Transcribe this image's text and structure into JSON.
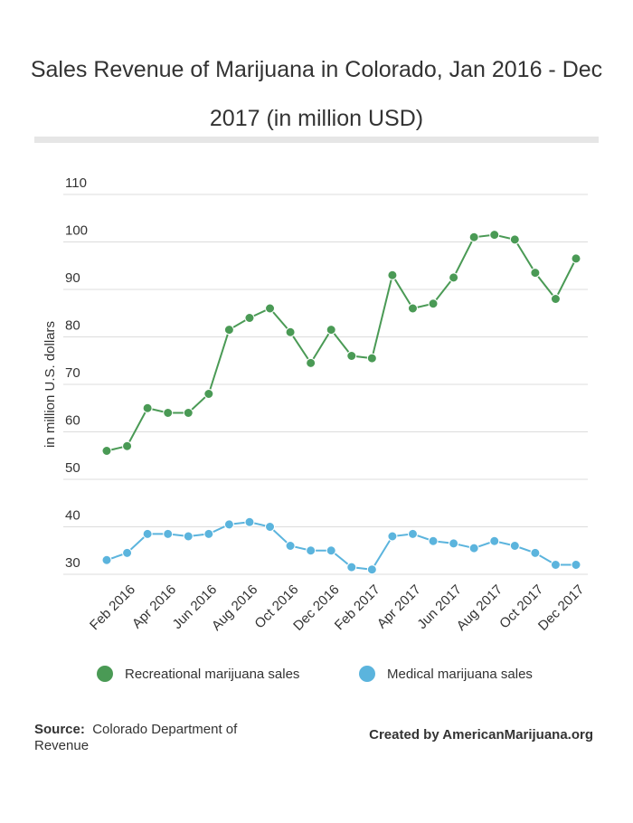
{
  "chart_data": {
    "type": "line",
    "title": "Sales Revenue of Marijuana in Colorado, Jan 2016 - Dec 2017 (in million USD)",
    "y_label": "in million U.S. dollars",
    "categories": [
      null,
      "Feb 2016",
      null,
      "Apr 2016",
      null,
      "Jun 2016",
      null,
      "Aug 2016",
      null,
      "Oct 2016",
      null,
      "Dec 2016",
      null,
      "Feb 2017",
      null,
      "Apr 2017",
      null,
      "Jun 2017",
      null,
      "Aug 2017",
      null,
      "Oct 2017",
      null,
      "Dec 2017"
    ],
    "series": [
      {
        "name": "Recreational marijuana sales",
        "color": "#4a9a55",
        "values": [
          56,
          57,
          65,
          64,
          64,
          68,
          81.5,
          84,
          86,
          81,
          74.5,
          81.5,
          76,
          75.5,
          93,
          86,
          87,
          92.5,
          101,
          101.5,
          100.5,
          93.5,
          88,
          96.5
        ]
      },
      {
        "name": "Medical marijuana sales",
        "color": "#5bb4dd",
        "values": [
          33,
          34.5,
          38.5,
          38.5,
          38,
          38.5,
          40.5,
          41,
          40,
          36,
          35,
          35,
          31.5,
          31,
          38,
          38.5,
          37,
          36.5,
          35.5,
          37,
          36,
          34.5,
          32,
          32
        ]
      }
    ],
    "ylim": [
      30,
      110
    ],
    "yticks": [
      30,
      40,
      50,
      60,
      70,
      80,
      90,
      100,
      110
    ],
    "grid": true,
    "legend": "bottom",
    "source_label": "Source:",
    "source": "Colorado Department of Revenue",
    "credit": "Created by AmericanMarijuana.org"
  }
}
